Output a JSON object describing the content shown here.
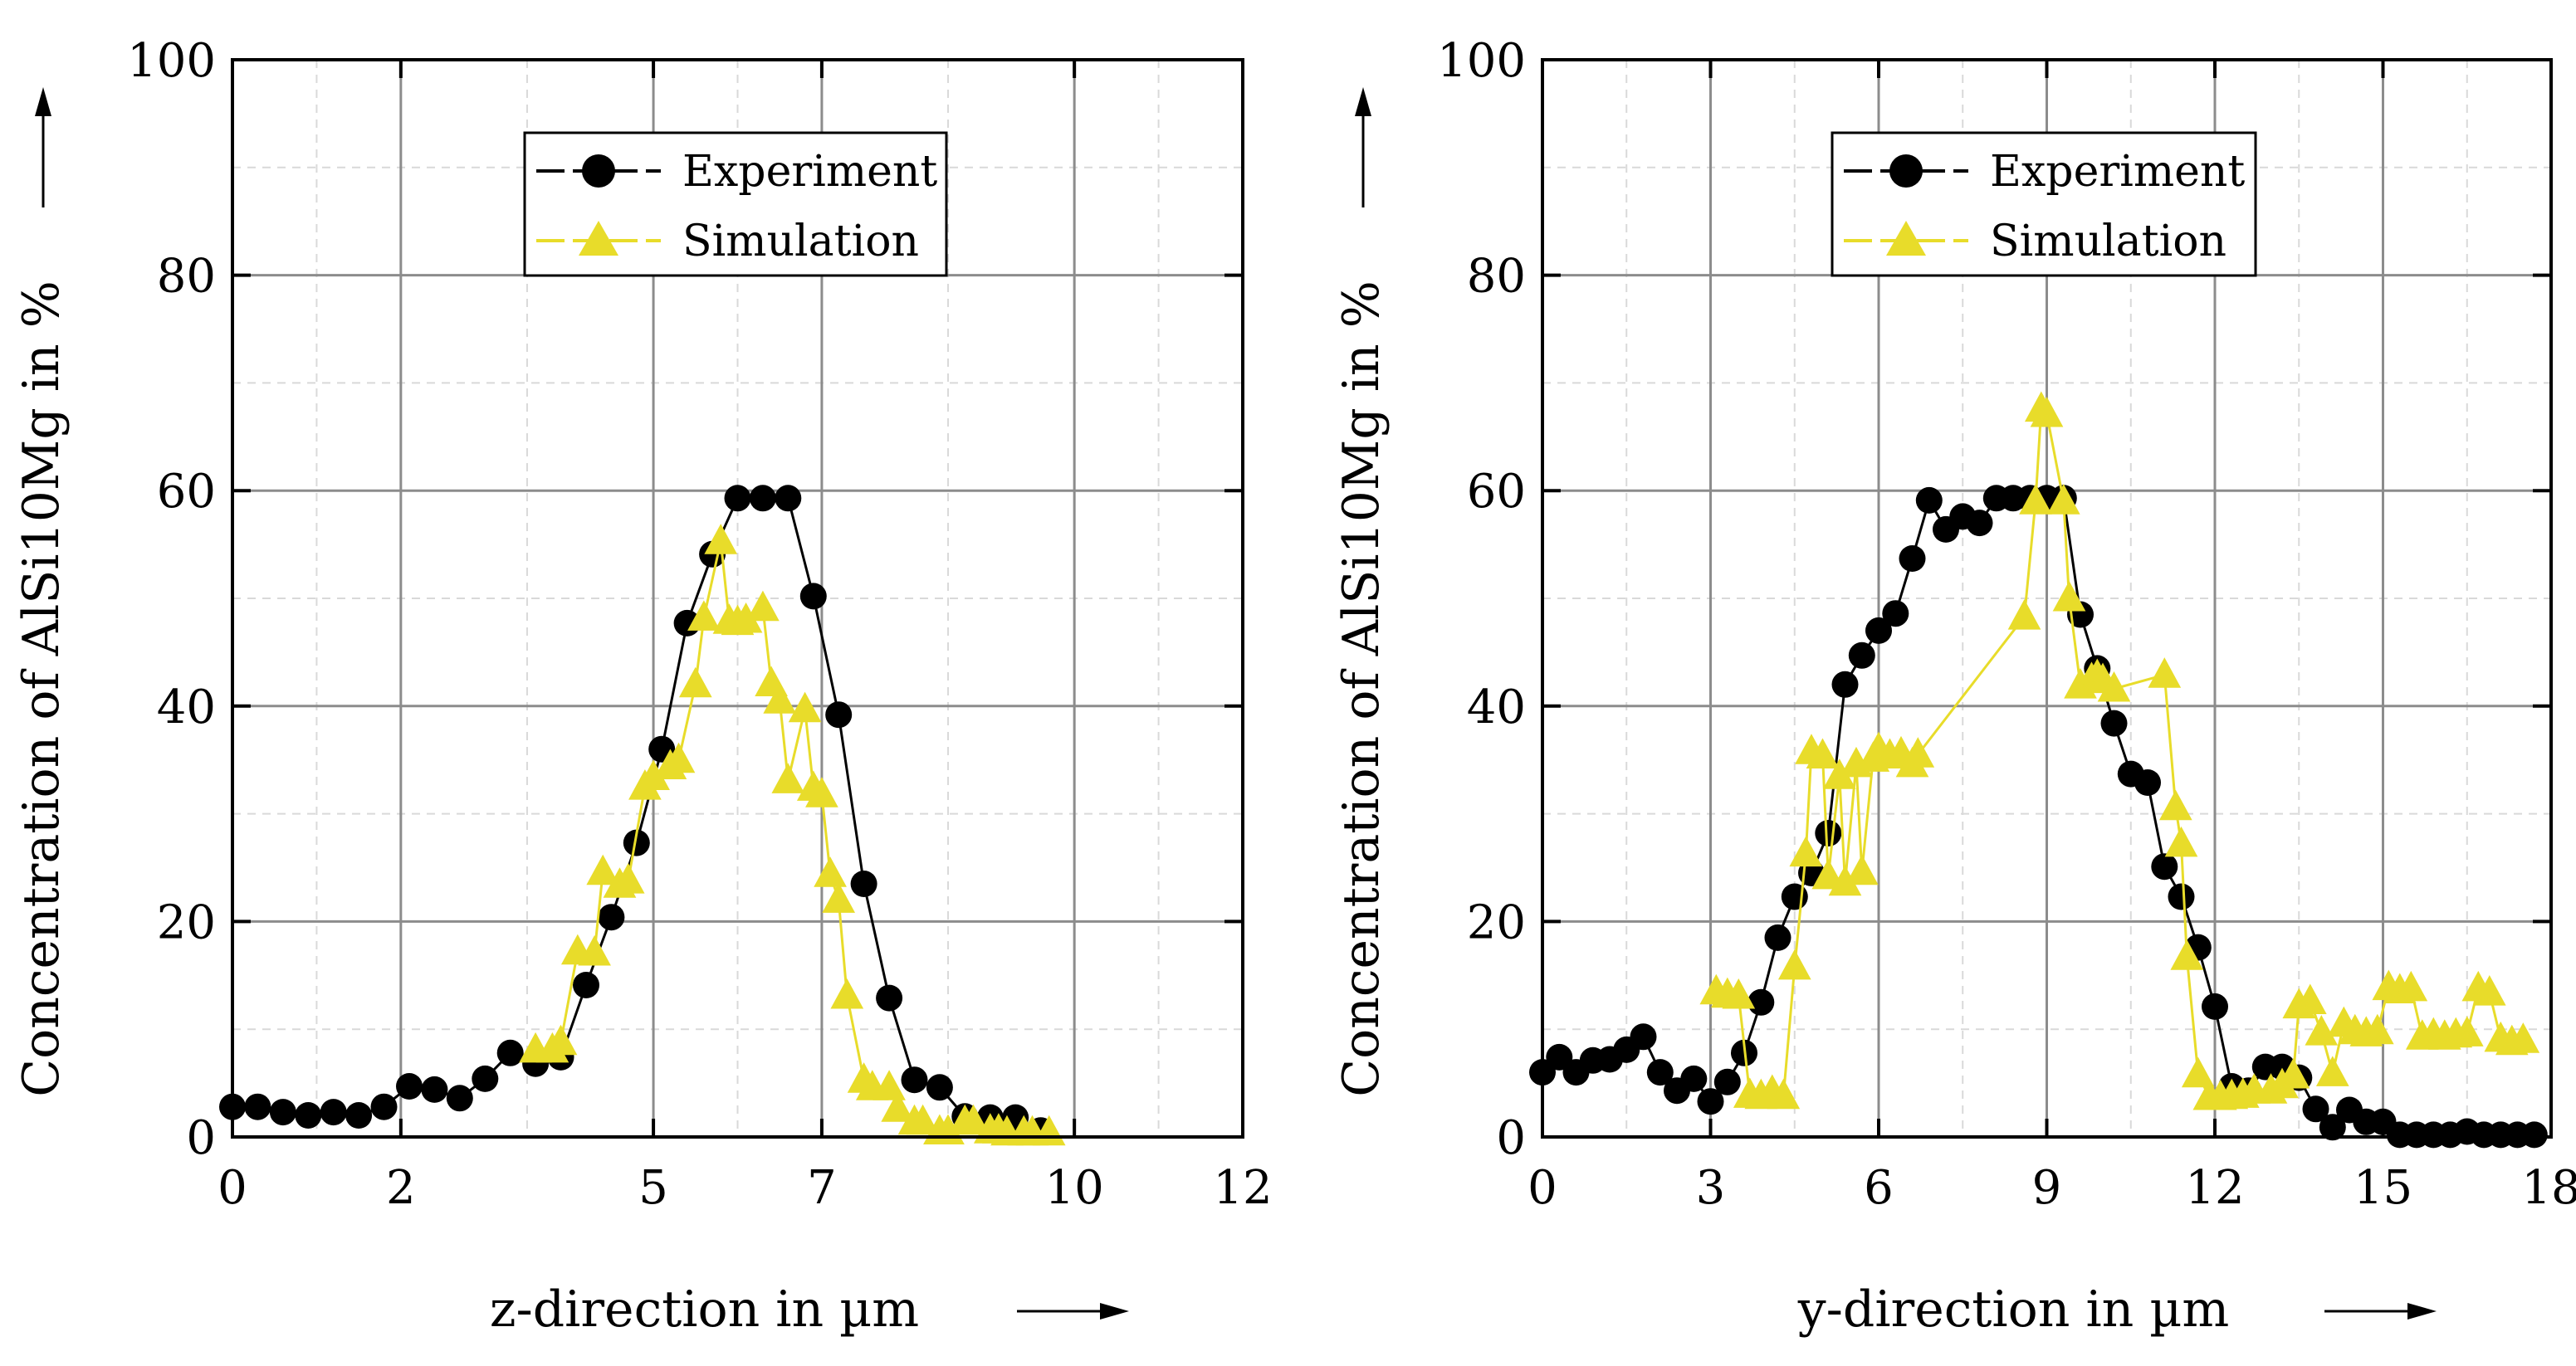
{
  "colors": {
    "experiment": "#000000",
    "simulation": "#e8dc2a",
    "grid": "#8c8c8c",
    "minor_grid": "#d9d9d9"
  },
  "chart_data": [
    {
      "type": "line",
      "ylabel": "Concentration of AlSi10Mg in %",
      "xlabel": "z-direction in µm",
      "xlim": [
        0,
        12
      ],
      "ylim": [
        0,
        100
      ],
      "x_ticks": [
        0,
        2,
        5,
        7,
        10,
        12
      ],
      "x_tick_labels": [
        "0",
        "2",
        "5",
        "7",
        "10",
        "12"
      ],
      "y_ticks": [
        0,
        20,
        40,
        60,
        80,
        100
      ],
      "y_tick_labels": [
        "0",
        "20",
        "40",
        "60",
        "80",
        "100"
      ],
      "legend": [
        "Experiment",
        "Simulation"
      ],
      "series": [
        {
          "name": "Experiment",
          "marker": "circle",
          "x": [
            0,
            0.3,
            0.6,
            0.9,
            1.2,
            1.5,
            1.8,
            2.1,
            2.4,
            2.7,
            3.0,
            3.3,
            3.6,
            3.9,
            4.2,
            4.5,
            4.8,
            5.1,
            5.4,
            5.7,
            6.0,
            6.3,
            6.6,
            6.9,
            7.2,
            7.5,
            7.8,
            8.1,
            8.4,
            8.7,
            9.0,
            9.3,
            9.6
          ],
          "y": [
            2.8,
            2.8,
            2.3,
            2.0,
            2.3,
            2.0,
            2.8,
            4.7,
            4.4,
            3.6,
            5.4,
            7.8,
            6.8,
            7.4,
            14.1,
            20.4,
            27.3,
            36.0,
            47.7,
            54.1,
            59.3,
            59.3,
            59.3,
            50.2,
            39.2,
            23.5,
            12.9,
            5.3,
            4.6,
            1.9,
            1.8,
            1.8,
            0.6
          ]
        },
        {
          "name": "Simulation",
          "marker": "triangle",
          "x": [
            3.6,
            3.8,
            3.9,
            4.1,
            4.3,
            4.4,
            4.6,
            4.7,
            4.9,
            5.0,
            5.2,
            5.3,
            5.5,
            5.6,
            5.8,
            5.9,
            6.0,
            6.1,
            6.3,
            6.4,
            6.5,
            6.6,
            6.8,
            6.9,
            7.0,
            7.1,
            7.2,
            7.3,
            7.5,
            7.6,
            7.8,
            7.9,
            8.1,
            8.2,
            8.4,
            8.5,
            8.7,
            8.8,
            9.0,
            9.1,
            9.2,
            9.4,
            9.5,
            9.7
          ],
          "y": [
            8.1,
            8.1,
            8.8,
            17.2,
            17.1,
            24.6,
            23.4,
            23.8,
            32.5,
            33.4,
            34.4,
            35.0,
            42.0,
            48.2,
            55.3,
            47.9,
            47.8,
            48.0,
            49.1,
            42.1,
            40.5,
            33.1,
            39.7,
            32.4,
            31.8,
            24.4,
            22.0,
            13.1,
            5.3,
            4.6,
            4.6,
            2.6,
            1.4,
            1.4,
            0.5,
            0.5,
            1.4,
            1.4,
            0.6,
            0.6,
            0.4,
            0.4,
            0.4,
            0.4
          ]
        }
      ]
    },
    {
      "type": "line",
      "ylabel": "Concentration of AlSi10Mg in %",
      "xlabel": "y-direction in µm",
      "xlim": [
        0,
        18
      ],
      "ylim": [
        0,
        100
      ],
      "x_ticks": [
        0,
        3,
        6,
        9,
        12,
        15,
        18
      ],
      "x_tick_labels": [
        "0",
        "3",
        "6",
        "9",
        "12",
        "15",
        "18"
      ],
      "y_ticks": [
        0,
        20,
        40,
        60,
        80,
        100
      ],
      "y_tick_labels": [
        "0",
        "20",
        "40",
        "60",
        "80",
        "100"
      ],
      "legend": [
        "Experiment",
        "Simulation"
      ],
      "series": [
        {
          "name": "Experiment",
          "marker": "circle",
          "x": [
            0,
            0.3,
            0.6,
            0.9,
            1.2,
            1.5,
            1.8,
            2.1,
            2.4,
            2.7,
            3.0,
            3.3,
            3.6,
            3.9,
            4.2,
            4.5,
            4.8,
            5.1,
            5.4,
            5.7,
            6.0,
            6.3,
            6.6,
            6.9,
            7.2,
            7.5,
            7.8,
            8.1,
            8.4,
            8.7,
            9.0,
            9.3,
            9.6,
            9.9,
            10.2,
            10.5,
            10.8,
            11.1,
            11.4,
            11.7,
            12.0,
            12.3,
            12.6,
            12.9,
            13.2,
            13.5,
            13.8,
            14.1,
            14.4,
            14.7,
            15.0,
            15.3,
            15.6,
            15.9,
            16.2,
            16.5,
            16.8,
            17.1,
            17.4,
            17.7
          ],
          "y": [
            6.0,
            7.4,
            6.0,
            7.1,
            7.2,
            8.1,
            9.3,
            6.0,
            4.3,
            5.4,
            3.3,
            5.1,
            7.8,
            12.5,
            18.5,
            22.3,
            24.5,
            28.2,
            42.0,
            44.7,
            47.0,
            48.6,
            53.7,
            59.1,
            56.4,
            57.6,
            57.0,
            59.3,
            59.3,
            59.3,
            59.3,
            59.3,
            48.5,
            43.5,
            38.4,
            33.7,
            32.9,
            25.1,
            22.3,
            17.6,
            12.1,
            4.7,
            4.3,
            6.5,
            6.5,
            5.5,
            2.6,
            0.9,
            2.5,
            1.4,
            1.4,
            0.2,
            0.2,
            0.2,
            0.2,
            0.5,
            0.2,
            0.2,
            0.2,
            0.2
          ]
        },
        {
          "name": "Simulation",
          "marker": "triangle",
          "x": [
            3.1,
            3.3,
            3.5,
            3.7,
            3.9,
            4.1,
            4.3,
            4.5,
            4.7,
            4.8,
            5.0,
            5.1,
            5.3,
            5.4,
            5.6,
            5.7,
            5.9,
            6.0,
            6.2,
            6.4,
            6.6,
            6.7,
            8.6,
            8.8,
            8.9,
            9.0,
            9.3,
            9.4,
            9.6,
            9.8,
            9.9,
            10.0,
            10.2,
            11.1,
            11.3,
            11.4,
            11.5,
            11.7,
            11.9,
            12.1,
            12.3,
            12.5,
            12.7,
            13.0,
            13.2,
            13.4,
            13.5,
            13.7,
            13.9,
            14.1,
            14.3,
            14.5,
            14.7,
            14.9,
            15.1,
            15.3,
            15.5,
            15.7,
            15.9,
            16.1,
            16.3,
            16.5,
            16.7,
            16.9,
            17.1,
            17.3,
            17.5
          ],
          "y": [
            13.5,
            13.2,
            13.1,
            3.9,
            3.8,
            4.2,
            3.8,
            15.8,
            26.3,
            35.8,
            35.4,
            24.2,
            33.5,
            23.6,
            34.6,
            24.6,
            35.1,
            36.0,
            35.4,
            35.6,
            34.6,
            35.5,
            48.3,
            59.0,
            67.6,
            67.1,
            59.0,
            50.0,
            41.9,
            42.5,
            42.8,
            42.4,
            41.6,
            42.9,
            30.6,
            27.2,
            16.7,
            5.8,
            3.7,
            3.7,
            3.8,
            3.9,
            4.3,
            4.3,
            4.8,
            5.7,
            12.2,
            12.6,
            9.7,
            5.9,
            10.5,
            9.8,
            9.6,
            9.8,
            13.9,
            13.6,
            13.8,
            9.3,
            9.5,
            9.3,
            9.5,
            9.6,
            13.8,
            13.4,
            9.1,
            8.8,
            9.0
          ]
        }
      ]
    }
  ]
}
